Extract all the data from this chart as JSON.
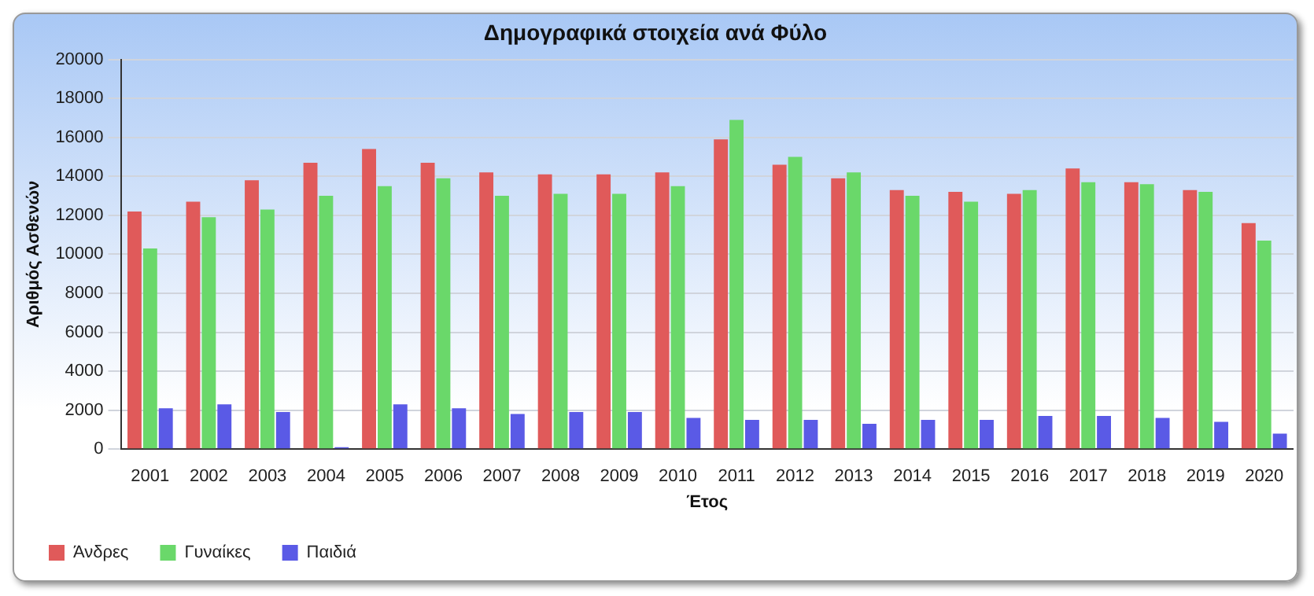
{
  "chart_data": {
    "type": "bar",
    "title": "Δημογραφικά στοιχεία ανά Φύλο",
    "xlabel": "Έτος",
    "ylabel": "Αριθμός Ασθενών",
    "categories": [
      "2001",
      "2002",
      "2003",
      "2004",
      "2005",
      "2006",
      "2007",
      "2008",
      "2009",
      "2010",
      "2011",
      "2012",
      "2013",
      "2014",
      "2015",
      "2016",
      "2017",
      "2018",
      "2019",
      "2020"
    ],
    "series": [
      {
        "name": "Άνδρες",
        "color": "#e05a5a",
        "values": [
          12200,
          12700,
          13800,
          14700,
          15400,
          14700,
          14200,
          14100,
          14100,
          14200,
          15900,
          14600,
          13900,
          13300,
          13200,
          13100,
          14400,
          13700,
          13300,
          11600
        ]
      },
      {
        "name": "Γυναίκες",
        "color": "#6ad86a",
        "values": [
          10300,
          11900,
          12300,
          13000,
          13500,
          13900,
          13000,
          13100,
          13100,
          13500,
          16900,
          15000,
          14200,
          13000,
          12700,
          13300,
          13700,
          13600,
          13200,
          10700
        ]
      },
      {
        "name": "Παιδιά",
        "color": "#5a5ae6",
        "values": [
          2100,
          2300,
          1900,
          100,
          2300,
          2100,
          1800,
          1900,
          1900,
          1600,
          1500,
          1500,
          1300,
          1500,
          1500,
          1700,
          1700,
          1600,
          1400,
          800
        ]
      }
    ],
    "ylim": [
      0,
      20000
    ],
    "yticks": [
      0,
      2000,
      4000,
      6000,
      8000,
      10000,
      12000,
      14000,
      16000,
      18000,
      20000
    ],
    "grid": "y",
    "legend": "bottom left"
  }
}
